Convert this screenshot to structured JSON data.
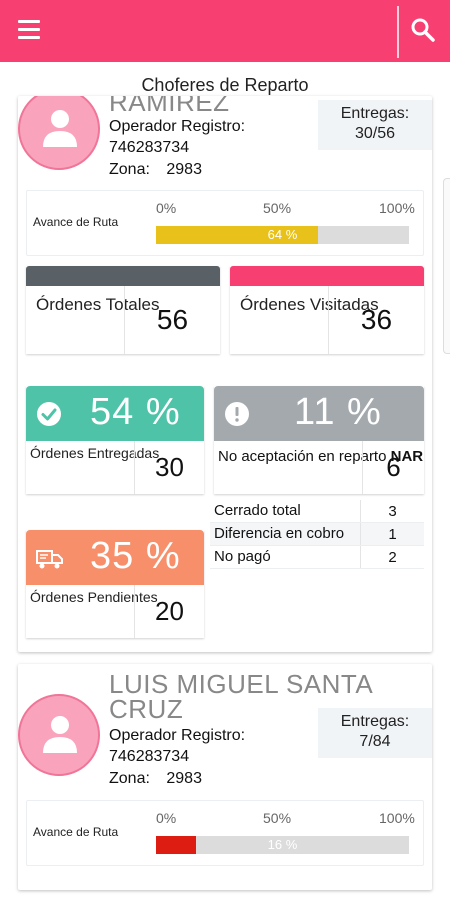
{
  "header": {
    "menu_icon": "hamburger-menu-icon",
    "search_icon": "search-icon",
    "color": "#f73f72"
  },
  "page_title": "Choferes de Reparto",
  "drivers": [
    {
      "name": "RAMIREZ",
      "operator_line": "Operador Registro:",
      "operator_id": "746283734",
      "zone_label": "Zona:",
      "zone_value": "2983",
      "deliveries_label": "Entregas:",
      "deliveries_value": "30/56",
      "route": {
        "label": "Avance de Ruta",
        "marks": [
          "0%",
          "50%",
          "100%"
        ],
        "progress": 64,
        "progress_text": "64 %",
        "color": "#e8c21a"
      },
      "totals": {
        "total_label": "Órdenes Totales",
        "total_value": "56",
        "total_color": "#5a6166",
        "visited_label": "Órdenes Visitadas",
        "visited_value": "36",
        "visited_color": "#f73f72"
      },
      "delivered": {
        "icon": "check-circle-icon",
        "percent": "54 %",
        "label": "Órdenes Entregadas",
        "value": "30",
        "color": "#4fc3a8"
      },
      "nar": {
        "icon": "alert-circle-icon",
        "percent": "11 %",
        "label": "No aceptación en reparto",
        "label_bold": "NAR",
        "value": "6",
        "color": "#a4a9ad"
      },
      "reasons": [
        {
          "label": "Cerrado total",
          "value": "3"
        },
        {
          "label": "Diferencia en cobro",
          "value": "1"
        },
        {
          "label": "No pagó",
          "value": "2"
        }
      ],
      "pending": {
        "icon": "delivery-truck-icon",
        "percent": "35 %",
        "label": "Órdenes Pendientes",
        "value": "20",
        "color": "#f68f6a"
      }
    },
    {
      "name": "LUIS MIGUEL SANTA CRUZ",
      "operator_line": "Operador Registro:",
      "operator_id": "746283734",
      "zone_label": "Zona:",
      "zone_value": "2983",
      "deliveries_label": "Entregas:",
      "deliveries_value": "7/84",
      "route": {
        "label": "Avance de Ruta",
        "marks": [
          "0%",
          "50%",
          "100%"
        ],
        "progress": 16,
        "progress_text": "16 %",
        "color": "#dd1c12"
      }
    }
  ]
}
